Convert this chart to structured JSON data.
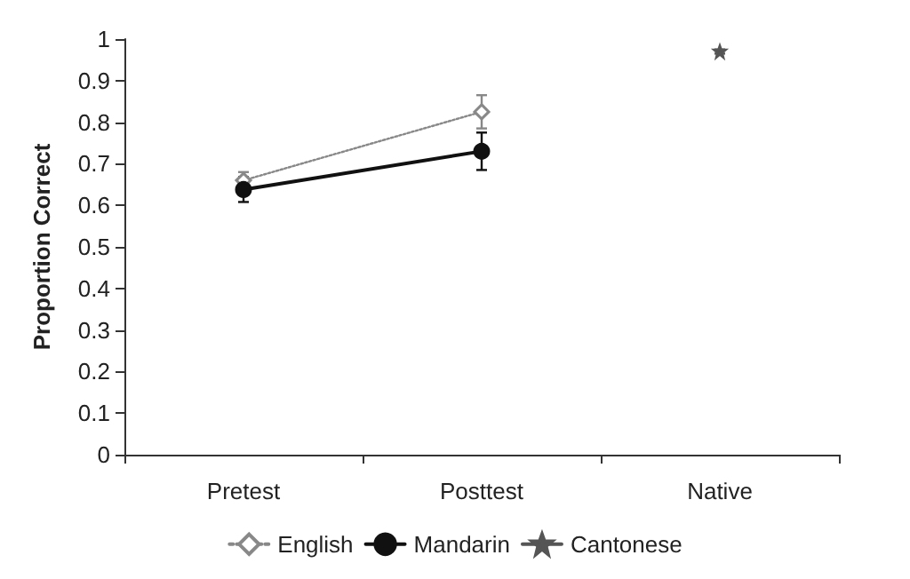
{
  "chart_data": {
    "type": "line",
    "ylabel": "Proportion Correct",
    "categories": [
      "Pretest",
      "Posttest",
      "Native"
    ],
    "series": [
      {
        "name": "English",
        "color": "#888888",
        "values": [
          0.66,
          0.825,
          null
        ],
        "errors": [
          0.02,
          0.04,
          null
        ],
        "marker": "diamond",
        "line_style": "dotted"
      },
      {
        "name": "Mandarin",
        "color": "#111111",
        "values": [
          0.638,
          0.73,
          null
        ],
        "errors": [
          0.03,
          0.045,
          null
        ],
        "marker": "circle",
        "line_style": "solid"
      },
      {
        "name": "Cantonese",
        "color": "#555555",
        "values": [
          null,
          null,
          0.97
        ],
        "errors": [
          null,
          null,
          0.005
        ],
        "marker": "star",
        "line_style": "solid"
      }
    ],
    "ylim": [
      0,
      1
    ],
    "yticks": [
      0,
      0.1,
      0.2,
      0.3,
      0.4,
      0.5,
      0.6,
      0.7,
      0.8,
      0.9,
      1
    ],
    "grid": false,
    "legend": "bottom"
  }
}
